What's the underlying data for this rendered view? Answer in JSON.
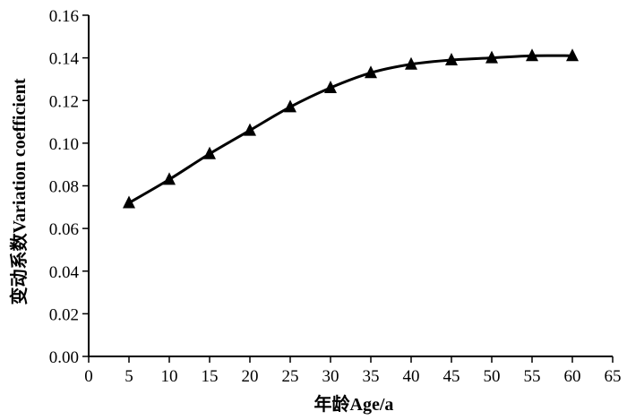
{
  "chart_data": {
    "type": "line",
    "title": "",
    "xlabel": "年龄Age/a",
    "ylabel": "变动系数Variation coefficient",
    "xlim": [
      0,
      65
    ],
    "ylim": [
      0,
      0.16
    ],
    "x_ticks": [
      "0",
      "5",
      "10",
      "15",
      "20",
      "25",
      "30",
      "35",
      "40",
      "45",
      "50",
      "55",
      "60",
      "65"
    ],
    "y_ticks": [
      "0.00",
      "0.02",
      "0.04",
      "0.06",
      "0.08",
      "0.10",
      "0.12",
      "0.14",
      "0.16"
    ],
    "grid": false,
    "legend": "none",
    "marker": "triangle",
    "color": "#000000",
    "series": [
      {
        "x": [
          5,
          10,
          15,
          20,
          25,
          30,
          35,
          40,
          45,
          50,
          55,
          60
        ],
        "values": [
          0.072,
          0.083,
          0.095,
          0.106,
          0.117,
          0.126,
          0.133,
          0.137,
          0.139,
          0.14,
          0.141,
          0.141
        ]
      }
    ]
  }
}
